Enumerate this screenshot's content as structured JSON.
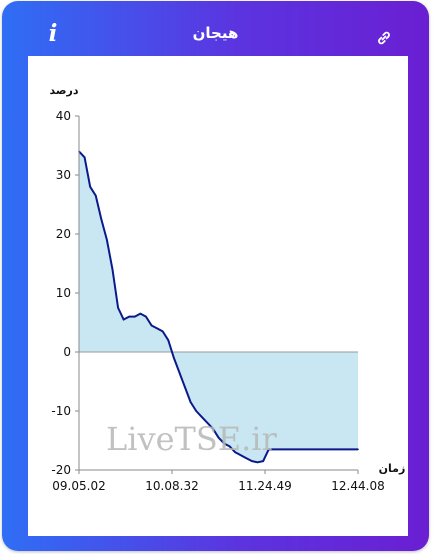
{
  "header": {
    "title": "هیجان",
    "info_label": "i",
    "info_icon": "info-icon",
    "link_icon": "link-icon"
  },
  "colors": {
    "frame_start": "#2f6ef5",
    "frame_end": "#6a1fd2",
    "line": "#0a1a8a",
    "fill": "#c9e7f2"
  },
  "watermark": "LiveTSE.ir",
  "chart_data": {
    "type": "area",
    "ylabel": "درصد",
    "xlabel": "زمان",
    "ylim": [
      -20,
      40
    ],
    "yticks": [
      40,
      30,
      20,
      10,
      0,
      -10,
      -20
    ],
    "xticks": [
      "09.05.02",
      "10.08.32",
      "11.24.49",
      "12.44.08"
    ],
    "x": [
      0,
      1,
      2,
      3,
      4,
      5,
      6,
      7,
      8,
      9,
      10,
      11,
      12,
      13,
      14,
      15,
      16,
      17,
      18,
      19,
      20,
      21,
      22,
      23,
      24,
      25,
      26,
      27,
      28,
      29,
      30,
      31,
      32,
      33,
      34,
      35,
      36,
      37,
      38,
      39,
      40,
      41,
      42,
      43,
      44,
      45,
      46,
      47,
      48,
      49,
      50
    ],
    "values": [
      34,
      33,
      28,
      26.5,
      22.5,
      19,
      14,
      7.5,
      5.5,
      6,
      6,
      6.5,
      6,
      4.5,
      4,
      3.5,
      2,
      -1,
      -3.5,
      -6,
      -8.5,
      -10,
      -11,
      -12,
      -13,
      -14.5,
      -15.5,
      -16,
      -17,
      -17.5,
      -18,
      -18.5,
      -18.7,
      -18.5,
      -16.5,
      -16.5,
      -16.5,
      -16.5,
      -16.5,
      -16.5,
      -16.5,
      -16.5,
      -16.5,
      -16.5,
      -16.5,
      -16.5,
      -16.5,
      -16.5,
      -16.5,
      -16.5,
      -16.5
    ],
    "grid": false,
    "legend": "none"
  }
}
